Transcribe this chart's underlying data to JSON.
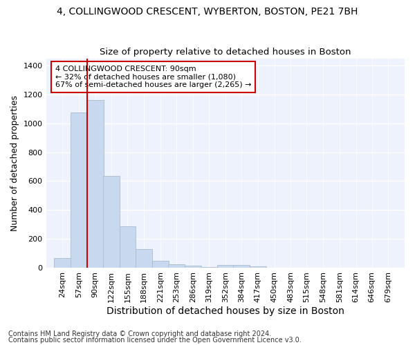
{
  "title1": "4, COLLINGWOOD CRESCENT, WYBERTON, BOSTON, PE21 7BH",
  "title2": "Size of property relative to detached houses in Boston",
  "xlabel": "Distribution of detached houses by size in Boston",
  "ylabel": "Number of detached properties",
  "footnote1": "Contains HM Land Registry data © Crown copyright and database right 2024.",
  "footnote2": "Contains public sector information licensed under the Open Government Licence v3.0.",
  "annotation_line1": "4 COLLINGWOOD CRESCENT: 90sqm",
  "annotation_line2": "← 32% of detached houses are smaller (1,080)",
  "annotation_line3": "67% of semi-detached houses are larger (2,265) →",
  "bar_step": 33,
  "property_size": 90,
  "bar_color": "#c8d8ee",
  "bar_edgecolor": "#aabcce",
  "highlight_color": "#cc0000",
  "bg_color": "#eef2fc",
  "grid_color": "#ffffff",
  "categories": [
    24,
    57,
    90,
    122,
    155,
    188,
    221,
    253,
    286,
    319,
    352,
    384,
    417,
    450,
    483,
    515,
    548,
    581,
    614,
    646,
    679
  ],
  "values": [
    65,
    1075,
    1160,
    635,
    285,
    130,
    47,
    25,
    15,
    5,
    20,
    20,
    10,
    0,
    0,
    0,
    0,
    0,
    0,
    0,
    0
  ],
  "ylim": [
    0,
    1450
  ],
  "yticks": [
    0,
    200,
    400,
    600,
    800,
    1000,
    1200,
    1400
  ],
  "title1_fontsize": 10,
  "title2_fontsize": 9.5,
  "ylabel_fontsize": 9,
  "xlabel_fontsize": 10,
  "tick_fontsize": 8,
  "annotation_fontsize": 8,
  "footnote_fontsize": 7
}
